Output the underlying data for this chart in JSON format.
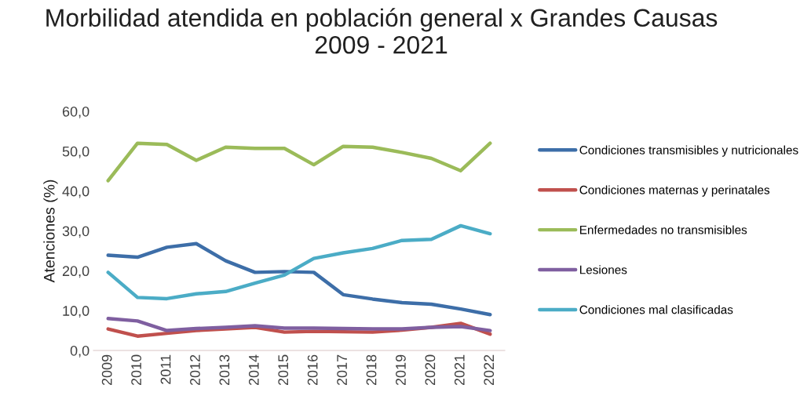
{
  "chart_data": {
    "type": "line",
    "title": "Morbilidad atendida en población general x Grandes Causas 2009 - 2021",
    "ylabel": "Atenciones (%)",
    "categories": [
      "2009",
      "2010",
      "2011",
      "2012",
      "2013",
      "2014",
      "2015",
      "2016",
      "2017",
      "2018",
      "2019",
      "2020",
      "2021",
      "2022"
    ],
    "series": [
      {
        "name": "Condiciones transmisibles y nutricionales",
        "color": "#3d6ea8",
        "values": [
          23.9,
          23.4,
          25.9,
          26.8,
          22.5,
          19.6,
          19.8,
          19.6,
          14.0,
          12.9,
          12.0,
          11.6,
          10.4,
          9.0
        ]
      },
      {
        "name": "Condiciones maternas y perinatales",
        "color": "#c0504d",
        "values": [
          5.4,
          3.6,
          4.3,
          5.0,
          5.4,
          5.8,
          4.6,
          4.8,
          4.7,
          4.6,
          5.1,
          5.8,
          6.8,
          4.1
        ]
      },
      {
        "name": "Enfermedades no transmisibles",
        "color": "#9bbb59",
        "values": [
          42.6,
          52.0,
          51.7,
          47.7,
          51.0,
          50.7,
          50.7,
          46.6,
          51.2,
          51.0,
          49.7,
          48.2,
          45.1,
          52.0
        ]
      },
      {
        "name": "Lesiones",
        "color": "#7f5fa0",
        "values": [
          8.0,
          7.4,
          5.0,
          5.5,
          5.8,
          6.2,
          5.6,
          5.6,
          5.5,
          5.4,
          5.4,
          5.8,
          6.0,
          5.0
        ]
      },
      {
        "name": "Condiciones mal clasificadas",
        "color": "#4bacc6",
        "values": [
          19.6,
          13.3,
          13.0,
          14.2,
          14.8,
          16.9,
          18.9,
          23.1,
          24.5,
          25.6,
          27.6,
          27.9,
          31.3,
          29.3
        ]
      }
    ],
    "ylim": [
      0,
      60
    ],
    "yticks": [
      {
        "value": 0,
        "label": "0,0"
      },
      {
        "value": 10,
        "label": "10,0"
      },
      {
        "value": 20,
        "label": "20,0"
      },
      {
        "value": 30,
        "label": "30,0"
      },
      {
        "value": 40,
        "label": "40,0"
      },
      {
        "value": 50,
        "label": "50,0"
      },
      {
        "value": 60,
        "label": "60,0"
      }
    ],
    "grid": false,
    "legend": "right",
    "marker": "none",
    "line_style": "solid"
  }
}
